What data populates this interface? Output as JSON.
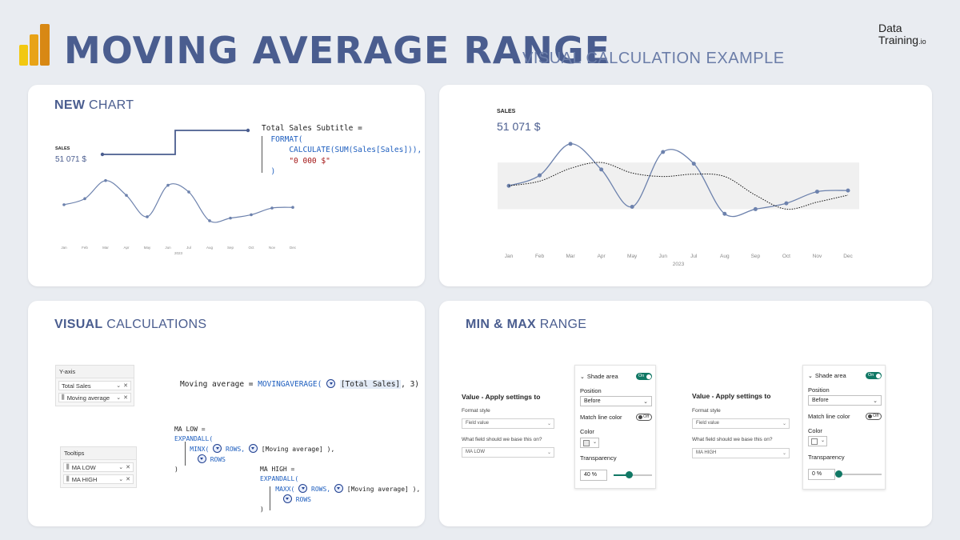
{
  "header": {
    "title": "MOVING AVERAGE RANGE",
    "subtitle": "VISUAL CALCULATION EXAMPLE",
    "brand_line1": "Data",
    "brand_line2": "Training",
    "brand_suffix": ".io"
  },
  "colors": {
    "title": "#4a5d8f",
    "line": "#6d82ad",
    "accent": "#117865",
    "logo": [
      "#f2c811",
      "#e8a317",
      "#d88814"
    ]
  },
  "new_chart": {
    "title_bold": "NEW",
    "title_rest": "CHART",
    "sales_label": "SALES",
    "sales_value": "51 071 $",
    "year": "2023",
    "code": {
      "line1": "Total Sales Subtitle =",
      "line2": "FORMAT(",
      "line3": "CALCULATE(SUM(Sales[Sales])),",
      "line4": "\"0 000 $\"",
      "line5": ")"
    }
  },
  "chart_main": {
    "sales_label": "SALES",
    "sales_value": "51 071 $",
    "year": "2023"
  },
  "chart_data": [
    {
      "type": "line",
      "title": "SALES",
      "categories": [
        "Jan",
        "Feb",
        "Mar",
        "Apr",
        "May",
        "Jun",
        "Jul",
        "Aug",
        "Sep",
        "Oct",
        "Nov",
        "Dec"
      ],
      "series": [
        {
          "name": "Total Sales",
          "values": [
            2.0,
            2.9,
            5.6,
            3.4,
            0.2,
            4.9,
            3.9,
            -0.4,
            0.0,
            0.5,
            1.5,
            1.6
          ]
        }
      ],
      "xlabel": "2023",
      "ylim": [
        -1,
        7
      ]
    },
    {
      "type": "line",
      "title": "SALES",
      "categories": [
        "Jan",
        "Feb",
        "Mar",
        "Apr",
        "May",
        "Jun",
        "Jul",
        "Aug",
        "Sep",
        "Oct",
        "Nov",
        "Dec"
      ],
      "series": [
        {
          "name": "Total Sales",
          "values": [
            2.0,
            2.9,
            5.6,
            3.4,
            0.2,
            4.9,
            3.9,
            -0.4,
            0.0,
            0.5,
            1.5,
            1.6
          ]
        },
        {
          "name": "Moving average",
          "values": [
            2.0,
            2.4,
            3.5,
            4.0,
            3.1,
            2.8,
            3.0,
            2.8,
            1.2,
            0.0,
            0.6,
            1.2
          ]
        }
      ],
      "band": {
        "name": "MA LOW / MA HIGH range",
        "low": 0,
        "high": 4.0
      },
      "xlabel": "2023",
      "ylim": [
        -1,
        6
      ]
    }
  ],
  "visual_calc": {
    "title_bold": "VISUAL",
    "title_rest": "CALCULATIONS",
    "yaxis_header": "Y-axis",
    "yaxis_items": [
      "Total Sales",
      "Moving average"
    ],
    "tooltips_header": "Tooltips",
    "tooltip_items": [
      "MA LOW",
      "MA HIGH"
    ],
    "ma_code": {
      "prefix": "Moving average = ",
      "func": "MOVINGAVERAGE(",
      "arg": "[Total Sales]",
      "suffix": ", 3)"
    },
    "ma_low": {
      "line1": "MA LOW =",
      "line2": "EXPANDALL(",
      "line3_func": "MINX(",
      "line3_rows": "ROWS,",
      "line3_arg": "[Moving average]",
      "line3_end": " ),",
      "line4": "ROWS",
      "line5": ")"
    },
    "ma_high": {
      "line1": "MA HIGH =",
      "line2": "EXPANDALL(",
      "line3_func": "MAXX(",
      "line3_rows": "ROWS,",
      "line3_arg": "[Moving average]",
      "line3_end": " ),",
      "line4": "ROWS",
      "line5": ")"
    }
  },
  "minmax": {
    "title_bold": "MIN & MAX",
    "title_rest": "RANGE",
    "left": {
      "apply_title": "Value - Apply settings to",
      "format_style_label": "Format style",
      "format_style_value": "Field value",
      "field_question": "What field should we base this on?",
      "field_value": "MA LOW",
      "shade_area": "Shade area",
      "toggle_on": "On",
      "position_label": "Position",
      "position_value": "Before",
      "match_line_color": "Match line color",
      "toggle_off": "Off",
      "color_label": "Color",
      "transparency_label": "Transparency",
      "transparency_value": "40 %",
      "transparency_pct": 40
    },
    "right": {
      "apply_title": "Value - Apply settings to",
      "format_style_label": "Format style",
      "format_style_value": "Field value",
      "field_question": "What field should we base this on?",
      "field_value": "MA HIGH",
      "shade_area": "Shade area",
      "toggle_on": "On",
      "position_label": "Position",
      "position_value": "Before",
      "match_line_color": "Match line color",
      "toggle_off": "Off",
      "color_label": "Color",
      "transparency_label": "Transparency",
      "transparency_value": "0 %",
      "transparency_pct": 0
    }
  }
}
